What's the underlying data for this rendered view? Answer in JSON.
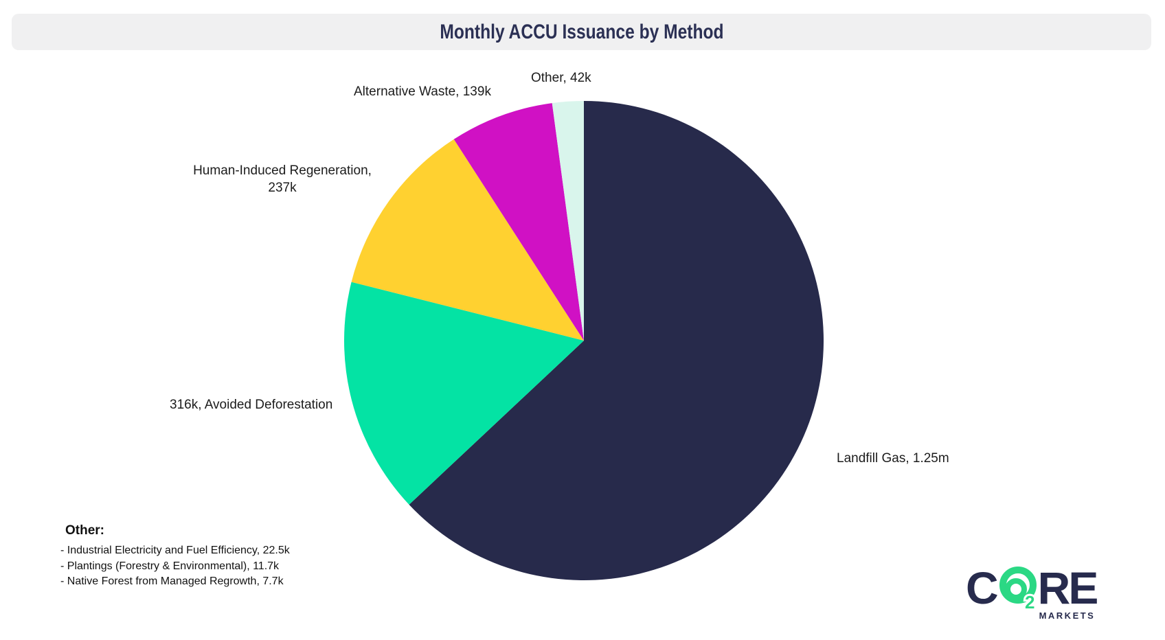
{
  "title": "Monthly ACCU Issuance by Method",
  "chart_data": {
    "type": "pie",
    "title": "Monthly ACCU Issuance by Method",
    "direction": "clockwise",
    "start_angle_deg": 0,
    "legend_position": "labels-around-slices",
    "slices": [
      {
        "id": "landfill-gas",
        "label": "Landfill Gas",
        "value": 1250000,
        "value_label": "1.25m",
        "color": "#272a4b"
      },
      {
        "id": "avoided-deforestation",
        "label": "Avoided Deforestation",
        "value": 316000,
        "value_label": "316k",
        "color": "#04e3a4"
      },
      {
        "id": "human-induced-regeneration",
        "label": "Human-Induced Regeneration",
        "value": 237000,
        "value_label": "237k",
        "color": "#ffd130"
      },
      {
        "id": "alternative-waste",
        "label": "Alternative Waste",
        "value": 139000,
        "value_label": "139k",
        "color": "#d011c4"
      },
      {
        "id": "other",
        "label": "Other",
        "value": 42000,
        "value_label": "42k",
        "color": "#d9f5ec"
      }
    ]
  },
  "pie_labels": {
    "other": "Other, 42k",
    "alternative_waste": "Alternative Waste, 139k",
    "hir_line1": "Human-Induced Regeneration,",
    "hir_line2": "237k",
    "avoided_deforestation": "316k, Avoided Deforestation",
    "landfill_gas": "Landfill Gas, 1.25m"
  },
  "other_breakdown": {
    "heading": "Other:",
    "items": [
      "- Industrial Electricity and Fuel Efficiency, 22.5k",
      "- Plantings (Forestry & Environmental), 11.7k",
      "- Native Forest from Managed Regrowth, 7.7k"
    ]
  },
  "logo": {
    "c": "C",
    "sub2": "2",
    "re": "RE",
    "markets": "MARKETS",
    "navy": "#272b4d",
    "green": "#2bd884"
  },
  "colors": {
    "header_bg": "#f0f0f1",
    "title_text": "#2b3054",
    "label_text": "#1c1c1c",
    "background": "#ffffff"
  }
}
